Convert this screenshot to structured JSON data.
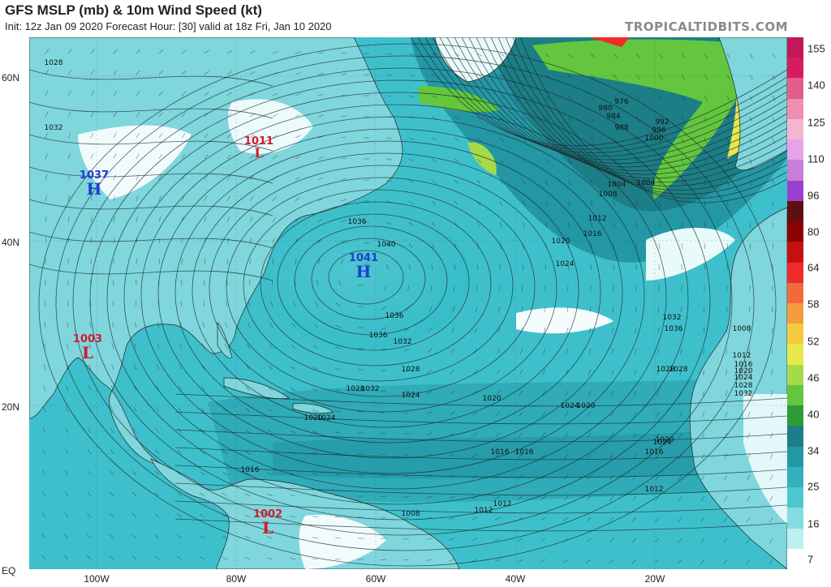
{
  "header": {
    "title": "GFS MSLP (mb) & 10m Wind Speed (kt)",
    "subtitle": "Init: 12z Jan 09 2020   Forecast Hour: [30]   valid at 18z Fri, Jan 10 2020",
    "brand": "TROPICALTIDBITS.COM"
  },
  "axes": {
    "lat_labels": [
      "60N",
      "40N",
      "20N",
      "EQ"
    ],
    "lon_labels": [
      "100W",
      "80W",
      "60W",
      "40W",
      "20W"
    ]
  },
  "colorbar": {
    "unit": "kt",
    "ticks": [
      "155",
      "140",
      "125",
      "110",
      "96",
      "80",
      "64",
      "58",
      "52",
      "46",
      "40",
      "34",
      "25",
      "16",
      "7"
    ],
    "colors": [
      "#c2185b",
      "#d81b60",
      "#e35d8a",
      "#ef8fb0",
      "#f4b6cf",
      "#e8a2e8",
      "#c77ed8",
      "#9b3fd0",
      "#5e1010",
      "#8b0000",
      "#c41010",
      "#f02b2b",
      "#f26a3c",
      "#f39c3d",
      "#f3c93d",
      "#e9e84a",
      "#a5da48",
      "#63c63e",
      "#2e9b37",
      "#1c7e86",
      "#2497a5",
      "#33b0bd",
      "#4ec6cf",
      "#84dbe2",
      "#bdeef1",
      "#ffffff"
    ],
    "color_stops": [
      155,
      148,
      140,
      133,
      125,
      118,
      110,
      103,
      96,
      88,
      80,
      72,
      64,
      61,
      58,
      55,
      52,
      49,
      46,
      43,
      40,
      37,
      34,
      29,
      25,
      20,
      16,
      11,
      7
    ]
  },
  "systems": [
    {
      "label": "1037",
      "symbol": "H",
      "type": "high",
      "color": "#1f3fd0"
    },
    {
      "label": "1041",
      "symbol": "H",
      "type": "high",
      "color": "#1f3fd0"
    },
    {
      "label": "1011",
      "symbol": "L",
      "type": "low",
      "color": "#d8192a"
    },
    {
      "label": "1003",
      "symbol": "L",
      "type": "low",
      "color": "#d8192a"
    },
    {
      "label": "1002",
      "symbol": "L",
      "type": "low",
      "color": "#d8192a"
    }
  ],
  "isobar_labels": [
    "1028",
    "1032",
    "1036",
    "1040",
    "1036",
    "1032",
    "1028",
    "1024",
    "1020",
    "1016",
    "1012",
    "1008",
    "1004",
    "1000",
    "996",
    "992",
    "988",
    "984",
    "980",
    "976",
    "1024",
    "1020",
    "1016",
    "1012",
    "1008",
    "1004",
    "1016",
    "1020",
    "1024",
    "1028",
    "1032",
    "1012",
    "1016",
    "1020",
    "1024",
    "1028",
    "1032",
    "1036",
    "1028",
    "1024",
    "1020",
    "1016",
    "1012",
    "1008",
    "1012",
    "1016",
    "1020",
    "1024",
    "1028",
    "1032",
    "1036"
  ],
  "colors": {
    "ocean_base": "#35bcc9",
    "strong_wind": "#1c7e86",
    "calm": "#ffffff",
    "high_color": "#1f3fd0",
    "low_color": "#d8192a"
  }
}
